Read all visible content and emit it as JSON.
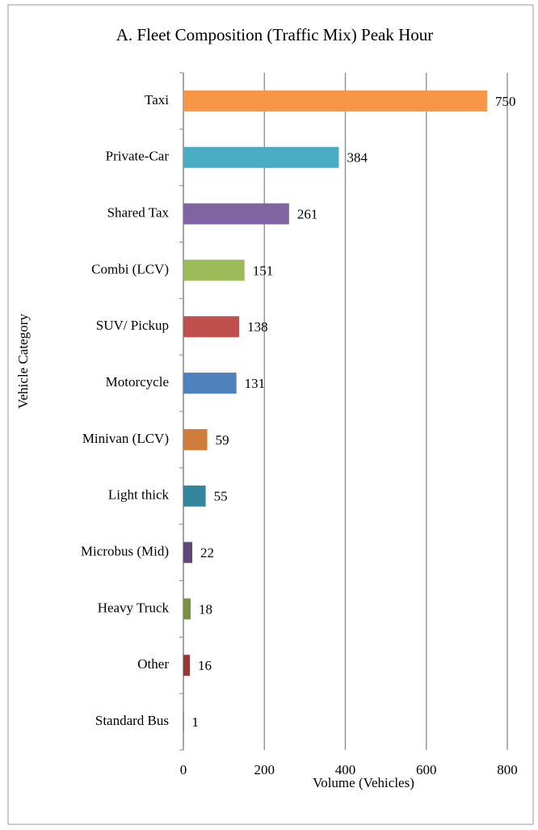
{
  "chart_data": {
    "type": "barh",
    "title": "A. Fleet Composition (Traffic Mix) Peak Hour",
    "x_label": "Volume (Vehicles)",
    "y_label": "Vehicle Category",
    "categories": [
      "Taxi",
      "Private-Car",
      "Shared Tax",
      "Combi (LCV)",
      "SUV/ Pickup",
      "Motorcycle",
      "Minivan (LCV)",
      "Light thick",
      "Microbus (Mid)",
      "Heavy Truck",
      "Other",
      "Standard Bus"
    ],
    "values": [
      750,
      384,
      261,
      151,
      138,
      131,
      59,
      55,
      22,
      18,
      16,
      1
    ],
    "colors": [
      "#f79646",
      "#4bacc6",
      "#8064a2",
      "#9bbb59",
      "#c0504d",
      "#4f81bd",
      "#d07c3a",
      "#31859c",
      "#5f497a",
      "#77933c",
      "#953735",
      "#3a5f8e"
    ],
    "xlim": [
      0,
      800
    ],
    "xticks": [
      0,
      200,
      400,
      600,
      800
    ],
    "grid": true
  }
}
